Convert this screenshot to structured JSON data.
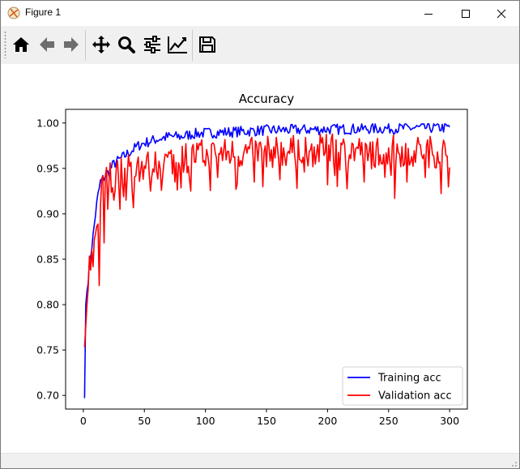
{
  "window": {
    "title": "Figure 1",
    "controls": {
      "minimize": "minimize-icon",
      "maximize": "maximize-icon",
      "close": "close-icon"
    }
  },
  "toolbar": {
    "items": [
      {
        "name": "home-icon",
        "tooltip": "Home"
      },
      {
        "name": "back-icon",
        "tooltip": "Back"
      },
      {
        "name": "forward-icon",
        "tooltip": "Forward"
      },
      {
        "name": "pan-icon",
        "tooltip": "Pan"
      },
      {
        "name": "zoom-icon",
        "tooltip": "Zoom"
      },
      {
        "name": "subplots-icon",
        "tooltip": "Subplots"
      },
      {
        "name": "customize-icon",
        "tooltip": "Customize"
      },
      {
        "name": "save-icon",
        "tooltip": "Save"
      }
    ]
  },
  "colors": {
    "training": "#0000ff",
    "validation": "#ff0000",
    "toolbar_bg": "#f0f0f0"
  },
  "chart_data": {
    "type": "line",
    "title": "Accuracy",
    "xlabel": "",
    "ylabel": "",
    "xlim": [
      -14.5,
      314.5
    ],
    "ylim": [
      0.685,
      1.015
    ],
    "xticks": [
      0,
      50,
      100,
      150,
      200,
      250,
      300
    ],
    "yticks": [
      0.7,
      0.75,
      0.8,
      0.85,
      0.9,
      0.95,
      1.0
    ],
    "ytick_labels": [
      "0.70",
      "0.75",
      "0.80",
      "0.85",
      "0.90",
      "0.95",
      "1.00"
    ],
    "legend_position": "lower-right",
    "grid": false,
    "series": [
      {
        "name": "Training acc",
        "x_start": 1,
        "x_step": 1,
        "anchors": [
          [
            1,
            0.697
          ],
          [
            2,
            0.8
          ],
          [
            4,
            0.83
          ],
          [
            6,
            0.855
          ],
          [
            8,
            0.875
          ],
          [
            10,
            0.9
          ],
          [
            12,
            0.92
          ],
          [
            14,
            0.935
          ],
          [
            17,
            0.94
          ],
          [
            20,
            0.945
          ],
          [
            25,
            0.955
          ],
          [
            30,
            0.96
          ],
          [
            35,
            0.965
          ],
          [
            40,
            0.97
          ],
          [
            45,
            0.975
          ],
          [
            50,
            0.978
          ],
          [
            60,
            0.982
          ],
          [
            70,
            0.985
          ],
          [
            80,
            0.985
          ],
          [
            90,
            0.988
          ],
          [
            100,
            0.989
          ],
          [
            120,
            0.99
          ],
          [
            150,
            0.992
          ],
          [
            200,
            0.993
          ],
          [
            250,
            0.994
          ],
          [
            300,
            0.995
          ]
        ],
        "noise": 0.006
      },
      {
        "name": "Validation acc",
        "x_start": 1,
        "x_step": 1,
        "anchors": [
          [
            1,
            0.753
          ],
          [
            3,
            0.8
          ],
          [
            5,
            0.84
          ],
          [
            8,
            0.85
          ],
          [
            10,
            0.88
          ],
          [
            13,
            0.91
          ],
          [
            16,
            0.93
          ],
          [
            20,
            0.94
          ],
          [
            30,
            0.945
          ],
          [
            40,
            0.95
          ],
          [
            60,
            0.955
          ],
          [
            80,
            0.962
          ],
          [
            100,
            0.965
          ],
          [
            150,
            0.968
          ],
          [
            200,
            0.97
          ],
          [
            250,
            0.97
          ],
          [
            300,
            0.968
          ]
        ],
        "noise": 0.018,
        "dips": [
          [
            6,
            0.838
          ],
          [
            13,
            0.821
          ],
          [
            17,
            0.868
          ],
          [
            20,
            0.905
          ],
          [
            25,
            0.915
          ],
          [
            30,
            0.905
          ],
          [
            35,
            0.915
          ],
          [
            40,
            0.925
          ],
          [
            55,
            0.925
          ],
          [
            75,
            0.935
          ],
          [
            88,
            0.925
          ],
          [
            110,
            0.94
          ],
          [
            140,
            0.935
          ],
          [
            175,
            0.928
          ],
          [
            200,
            0.932
          ],
          [
            230,
            0.935
          ],
          [
            255,
            0.917
          ],
          [
            265,
            0.935
          ],
          [
            280,
            0.94
          ]
        ]
      }
    ]
  }
}
